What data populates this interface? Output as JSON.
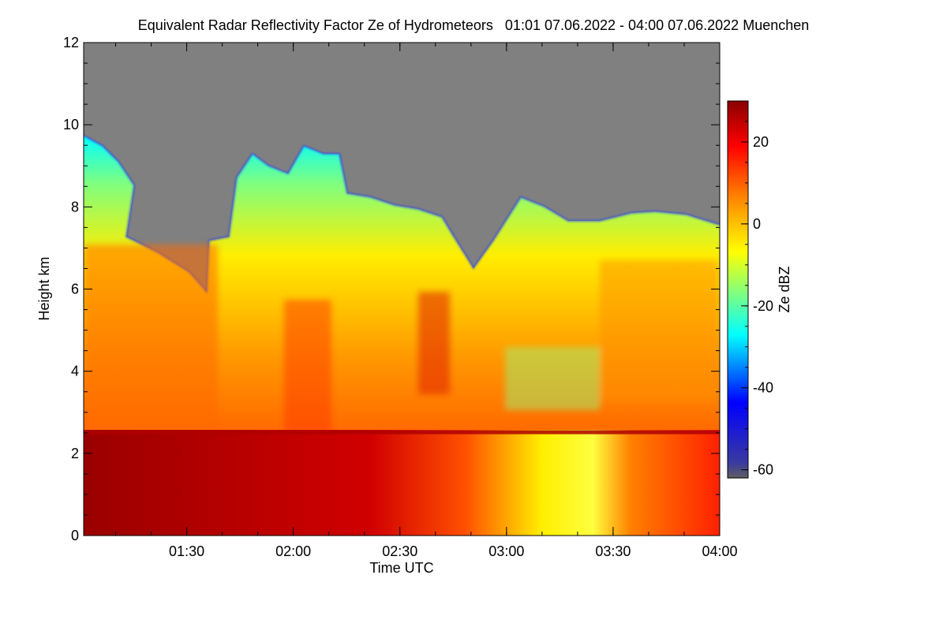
{
  "chart_data": {
    "type": "heatmap",
    "title": "Equivalent Radar Reflectivity Factor Ze of Hydrometeors",
    "time_range": "01:01 07.06.2022 - 04:00 07.06.2022",
    "location": "Muenchen",
    "xlabel": "Time UTC",
    "ylabel": "Height km",
    "colorbar_label": "Ze dBZ",
    "xlim": [
      "01:01",
      "04:00"
    ],
    "x_ticks": [
      "01:30",
      "02:00",
      "02:30",
      "03:00",
      "03:30",
      "04:00"
    ],
    "ylim": [
      0,
      12
    ],
    "y_ticks": [
      "0",
      "2",
      "4",
      "6",
      "8",
      "10",
      "12"
    ],
    "colorbar_range": [
      -62,
      30
    ],
    "colorbar_ticks": [
      "20",
      "0",
      "-20",
      "-40",
      "-60"
    ],
    "colormap": [
      "#5f5f5f",
      "#00008b",
      "#0000ff",
      "#00ffff",
      "#ffff00",
      "#ff7f00",
      "#ff0000",
      "#8b0000"
    ],
    "no_data_color": "#808080",
    "features": {
      "melting_layer_height_km": 2.5,
      "cloud_top_height_km": [
        9.7,
        7.6
      ]
    }
  }
}
